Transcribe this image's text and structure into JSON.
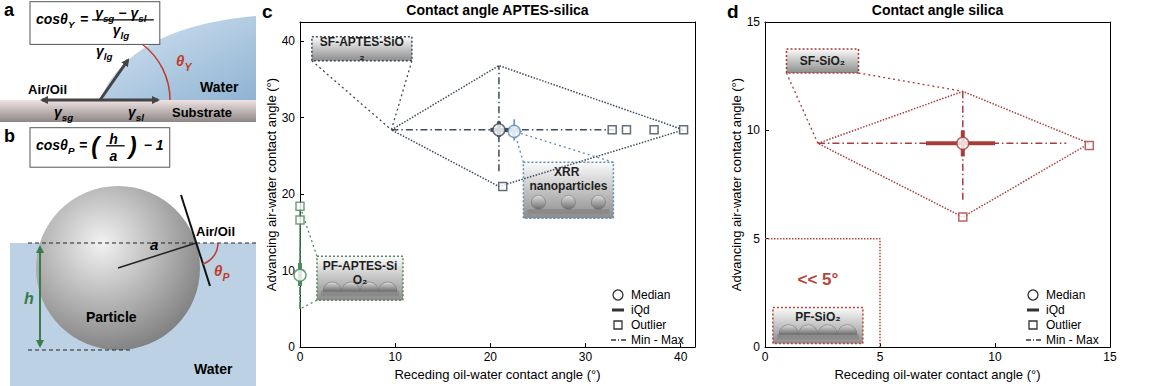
{
  "diagrams": [
    {
      "panel": "a",
      "formula": [
        {
          "t": "cosθ",
          "sub": "Y"
        },
        {
          "t": "="
        },
        {
          "frac": {
            "num": [
              {
                "t": "γ",
                "sub": "sg"
              },
              {
                "t": "−"
              },
              {
                "t": "γ",
                "sub": "sl"
              }
            ],
            "den": [
              {
                "t": "γ",
                "sub": "lg"
              }
            ]
          }
        }
      ],
      "labels": {
        "top_medium": "Air/Oil",
        "liquid": "Water",
        "solid": "Substrate",
        "angle": {
          "t": "θ",
          "sub": "Y"
        },
        "tension_lg": {
          "t": "γ",
          "sub": "lg"
        },
        "tension_sg": {
          "t": "γ",
          "sub": "sg"
        },
        "tension_sl": {
          "t": "γ",
          "sub": "sl"
        }
      }
    },
    {
      "panel": "b",
      "formula": [
        {
          "t": "cosθ",
          "sub": "P"
        },
        {
          "t": "="
        },
        {
          "t": "("
        },
        {
          "frac": {
            "num": [
              {
                "t": "h"
              }
            ],
            "den": [
              {
                "t": "a"
              }
            ]
          }
        },
        {
          "t": ")"
        },
        {
          "t": "− 1"
        }
      ],
      "labels": {
        "top_medium": "Air/Oil",
        "liquid": "Water",
        "particle": "Particle",
        "radius": "a",
        "depth": "h",
        "angle": {
          "t": "θ",
          "sub": "P"
        }
      }
    }
  ],
  "chart_data": [
    {
      "panel": "c",
      "type": "scatter",
      "title": "Contact angle APTES-silica",
      "x_label": "Receding oil-water contact angle (°)",
      "y_label": "Advancing air-water contact angle (°)",
      "xlim": [
        0,
        41.5
      ],
      "ylim": [
        0,
        42.5
      ],
      "xticks": [
        0,
        10,
        20,
        30,
        40
      ],
      "yticks": [
        0,
        10,
        20,
        30,
        40
      ],
      "grid": false,
      "legend": "lower right",
      "legend_entries": [
        "Median",
        "iQd",
        "Outlier",
        "Min - Max"
      ],
      "series": [
        {
          "name": "SF-APTES-SiO₂",
          "color": "#3d4b5a",
          "median": [
            20.9,
            28.4
          ],
          "iqd": {
            "x": [
              20,
              23
            ],
            "y": [
              27.5,
              29.5
            ]
          },
          "min_max": {
            "x": [
              9.6,
              33
            ],
            "y": [
              23,
              36.8
            ]
          },
          "outliers": [
            [
              21.3,
              21
            ],
            [
              32.8,
              28.4
            ],
            [
              34.3,
              28.4
            ],
            [
              37.2,
              28.4
            ],
            [
              40.3,
              28.4
            ]
          ]
        },
        {
          "name": "XRR nanoparticles",
          "color": "#5f8db5",
          "median": [
            22.5,
            28.2
          ],
          "iqd": {
            "x": [
              22,
              23
            ],
            "y": [
              27.5,
              29
            ]
          },
          "min_max": {
            "x": [
              21.5,
              23.3
            ],
            "y": [
              27,
              29.8
            ]
          },
          "outliers": []
        },
        {
          "name": "PF-APTES-SiO₂",
          "color": "#4f8a5e",
          "median": [
            0,
            9.4
          ],
          "iqd": {
            "x": [
              0,
              0
            ],
            "y": [
              8,
              11
            ]
          },
          "min_max": {
            "x": [
              0,
              0
            ],
            "y": [
              5,
              13
            ]
          },
          "outliers": [
            [
              0,
              16.6
            ],
            [
              0,
              18.4
            ]
          ]
        }
      ]
    },
    {
      "panel": "d",
      "type": "scatter",
      "title": "Contact angle silica",
      "x_label": "Receding oil-water contact angle (°)",
      "y_label": "Advancing air-water contact angle (°)",
      "xlim": [
        0,
        15
      ],
      "ylim": [
        0,
        15
      ],
      "xticks": [
        0,
        5,
        10,
        15
      ],
      "yticks": [
        0,
        5,
        10,
        15
      ],
      "grid": false,
      "legend": "lower right",
      "legend_entries": [
        "Median",
        "iQd",
        "Outlier",
        "Min - Max"
      ],
      "series": [
        {
          "name": "SF-SiO₂",
          "color": "#a83c3c",
          "median": [
            8.6,
            9.4
          ],
          "iqd": {
            "x": [
              7,
              10
            ],
            "y": [
              8.8,
              10
            ]
          },
          "min_max": {
            "x": [
              2.3,
              13.1
            ],
            "y": [
              6.8,
              11.8
            ]
          },
          "outliers": [
            [
              8.6,
              6
            ],
            [
              14.1,
              9.3
            ]
          ]
        }
      ],
      "regions": [
        {
          "label": "PF-SiO₂",
          "annotation": "<< 5°",
          "color": "#b5443c",
          "x": [
            0,
            5
          ],
          "y": [
            0,
            5
          ]
        }
      ]
    }
  ]
}
